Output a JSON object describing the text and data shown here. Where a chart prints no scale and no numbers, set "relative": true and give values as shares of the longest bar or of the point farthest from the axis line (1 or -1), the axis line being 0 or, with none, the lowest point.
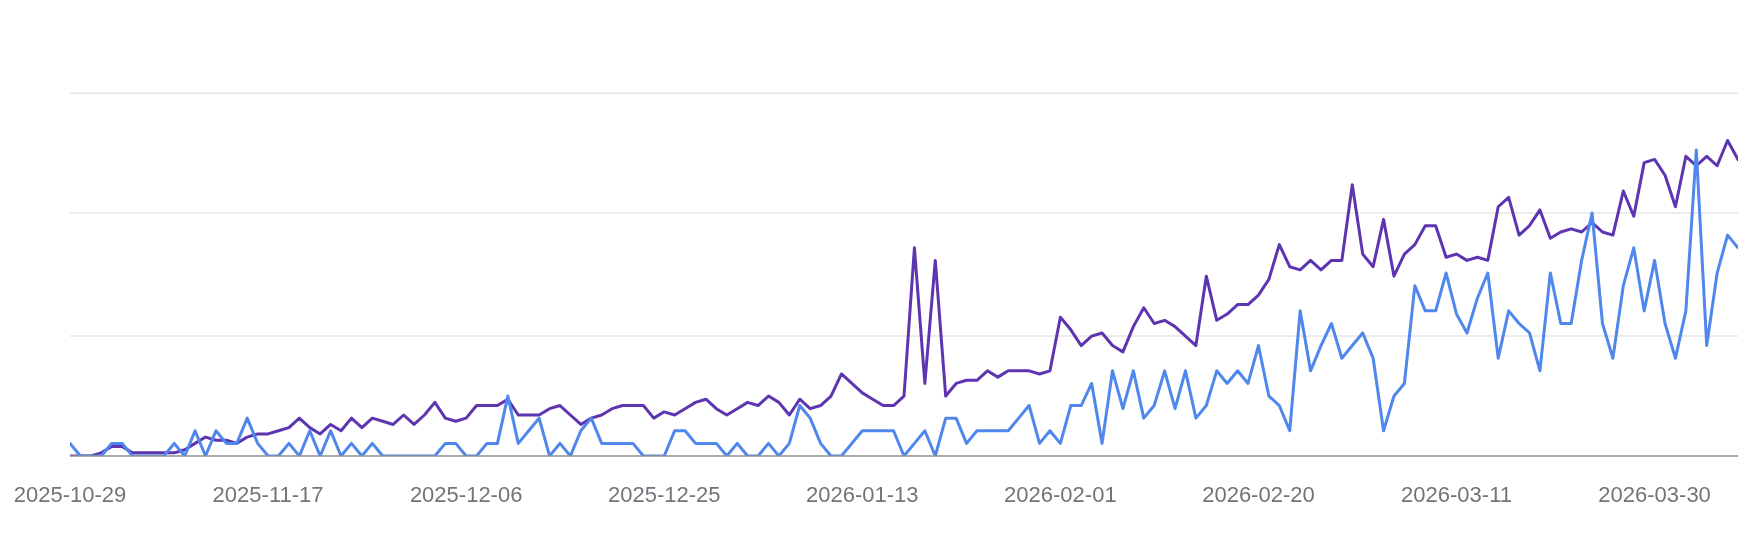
{
  "chart_data": {
    "type": "line",
    "relative": true,
    "marker": "none",
    "ref_lines": [
      {
        "axis": "y",
        "value": 0.38,
        "color": "#e6e6e6"
      },
      {
        "axis": "y",
        "value": 0.77,
        "color": "#e6e6e6"
      },
      {
        "axis": "y",
        "value": 1.15,
        "color": "#e6e6e6"
      }
    ],
    "x": [
      "2025-10-29",
      "2025-10-30",
      "2025-10-31",
      "2025-11-01",
      "2025-11-02",
      "2025-11-03",
      "2025-11-04",
      "2025-11-05",
      "2025-11-06",
      "2025-11-07",
      "2025-11-08",
      "2025-11-09",
      "2025-11-10",
      "2025-11-11",
      "2025-11-12",
      "2025-11-13",
      "2025-11-14",
      "2025-11-15",
      "2025-11-16",
      "2025-11-17",
      "2025-11-18",
      "2025-11-19",
      "2025-11-20",
      "2025-11-21",
      "2025-11-22",
      "2025-11-23",
      "2025-11-24",
      "2025-11-25",
      "2025-11-26",
      "2025-11-27",
      "2025-11-28",
      "2025-11-29",
      "2025-11-30",
      "2025-12-01",
      "2025-12-02",
      "2025-12-03",
      "2025-12-04",
      "2025-12-05",
      "2025-12-06",
      "2025-12-07",
      "2025-12-08",
      "2025-12-09",
      "2025-12-10",
      "2025-12-11",
      "2025-12-12",
      "2025-12-13",
      "2025-12-14",
      "2025-12-15",
      "2025-12-16",
      "2025-12-17",
      "2025-12-18",
      "2025-12-19",
      "2025-12-20",
      "2025-12-21",
      "2025-12-22",
      "2025-12-23",
      "2025-12-24",
      "2025-12-25",
      "2025-12-26",
      "2025-12-27",
      "2025-12-28",
      "2025-12-29",
      "2025-12-30",
      "2025-12-31",
      "2026-01-01",
      "2026-01-02",
      "2026-01-03",
      "2026-01-04",
      "2026-01-05",
      "2026-01-06",
      "2026-01-07",
      "2026-01-08",
      "2026-01-09",
      "2026-01-10",
      "2026-01-11",
      "2026-01-12",
      "2026-01-13",
      "2026-01-14",
      "2026-01-15",
      "2026-01-16",
      "2026-01-17",
      "2026-01-18",
      "2026-01-19",
      "2026-01-20",
      "2026-01-21",
      "2026-01-22",
      "2026-01-23",
      "2026-01-24",
      "2026-01-25",
      "2026-01-26",
      "2026-01-27",
      "2026-01-28",
      "2026-01-29",
      "2026-01-30",
      "2026-01-31",
      "2026-02-01",
      "2026-02-02",
      "2026-02-03",
      "2026-02-04",
      "2026-02-05",
      "2026-02-06",
      "2026-02-07",
      "2026-02-08",
      "2026-02-09",
      "2026-02-10",
      "2026-02-11",
      "2026-02-12",
      "2026-02-13",
      "2026-02-14",
      "2026-02-15",
      "2026-02-16",
      "2026-02-17",
      "2026-02-18",
      "2026-02-19",
      "2026-02-20",
      "2026-02-21",
      "2026-02-22",
      "2026-02-23",
      "2026-02-24",
      "2026-02-25",
      "2026-02-26",
      "2026-02-27",
      "2026-02-28",
      "2026-03-01",
      "2026-03-02",
      "2026-03-03",
      "2026-03-04",
      "2026-03-05",
      "2026-03-06",
      "2026-03-07",
      "2026-03-08",
      "2026-03-09",
      "2026-03-10",
      "2026-03-11",
      "2026-03-12",
      "2026-03-13",
      "2026-03-14",
      "2026-03-15",
      "2026-03-16",
      "2026-03-17",
      "2026-03-18",
      "2026-03-19",
      "2026-03-20",
      "2026-03-21",
      "2026-03-22",
      "2026-03-23",
      "2026-03-24",
      "2026-03-25",
      "2026-03-26",
      "2026-03-27",
      "2026-03-28",
      "2026-03-29",
      "2026-03-30",
      "2026-03-31",
      "2026-04-01",
      "2026-04-02",
      "2026-04-03",
      "2026-04-04",
      "2026-04-05",
      "2026-04-06",
      "2026-04-07"
    ],
    "xlim": [
      "2025-10-29",
      "2026-04-07"
    ],
    "xticks": [
      "2025-10-29",
      "2025-11-17",
      "2025-12-06",
      "2025-12-25",
      "2026-01-13",
      "2026-02-01",
      "2026-02-20",
      "2026-03-11",
      "2026-03-30"
    ],
    "series": [
      {
        "color": "#5e35b1",
        "values": [
          0,
          0,
          0,
          0.01,
          0.03,
          0.03,
          0.01,
          0.01,
          0.01,
          0.01,
          0.01,
          0.02,
          0.04,
          0.06,
          0.05,
          0.05,
          0.04,
          0.06,
          0.07,
          0.07,
          0.08,
          0.09,
          0.12,
          0.09,
          0.07,
          0.1,
          0.08,
          0.12,
          0.09,
          0.12,
          0.11,
          0.1,
          0.13,
          0.1,
          0.13,
          0.17,
          0.12,
          0.11,
          0.12,
          0.16,
          0.16,
          0.16,
          0.18,
          0.13,
          0.13,
          0.13,
          0.15,
          0.16,
          0.13,
          0.1,
          0.12,
          0.13,
          0.15,
          0.16,
          0.16,
          0.16,
          0.12,
          0.14,
          0.13,
          0.15,
          0.17,
          0.18,
          0.15,
          0.13,
          0.15,
          0.17,
          0.16,
          0.19,
          0.17,
          0.13,
          0.18,
          0.15,
          0.16,
          0.19,
          0.26,
          0.23,
          0.2,
          0.18,
          0.16,
          0.16,
          0.19,
          0.66,
          0.23,
          0.62,
          0.19,
          0.23,
          0.24,
          0.24,
          0.27,
          0.25,
          0.27,
          0.27,
          0.27,
          0.26,
          0.27,
          0.44,
          0.4,
          0.35,
          0.38,
          0.39,
          0.35,
          0.33,
          0.41,
          0.47,
          0.42,
          0.43,
          0.41,
          0.38,
          0.35,
          0.57,
          0.43,
          0.45,
          0.48,
          0.48,
          0.51,
          0.56,
          0.67,
          0.6,
          0.59,
          0.62,
          0.59,
          0.62,
          0.62,
          0.86,
          0.64,
          0.6,
          0.75,
          0.57,
          0.64,
          0.67,
          0.73,
          0.73,
          0.63,
          0.64,
          0.62,
          0.63,
          0.62,
          0.79,
          0.82,
          0.7,
          0.73,
          0.78,
          0.69,
          0.71,
          0.72,
          0.71,
          0.74,
          0.71,
          0.7,
          0.84,
          0.76,
          0.93,
          0.94,
          0.89,
          0.79,
          0.95,
          0.92,
          0.95,
          0.92,
          1,
          0.94
        ]
      },
      {
        "color": "#4f87ec",
        "values": [
          0.04,
          0,
          0,
          0,
          0.04,
          0.04,
          0,
          0,
          0,
          0,
          0.04,
          0,
          0.08,
          0,
          0.08,
          0.04,
          0.04,
          0.12,
          0.04,
          0,
          0,
          0.04,
          0,
          0.08,
          0,
          0.08,
          0,
          0.04,
          0,
          0.04,
          0,
          0,
          0,
          0,
          0,
          0,
          0.04,
          0.04,
          0,
          0,
          0.04,
          0.04,
          0.19,
          0.04,
          0.08,
          0.12,
          0,
          0.04,
          0,
          0.08,
          0.12,
          0.04,
          0.04,
          0.04,
          0.04,
          0,
          0,
          0,
          0.08,
          0.08,
          0.04,
          0.04,
          0.04,
          0,
          0.04,
          0,
          0,
          0.04,
          0,
          0.04,
          0.16,
          0.12,
          0.04,
          0,
          0,
          0.04,
          0.08,
          0.08,
          0.08,
          0.08,
          0,
          0.04,
          0.08,
          0,
          0.12,
          0.12,
          0.04,
          0.08,
          0.08,
          0.08,
          0.08,
          0.12,
          0.16,
          0.04,
          0.08,
          0.04,
          0.16,
          0.16,
          0.23,
          0.04,
          0.27,
          0.15,
          0.27,
          0.12,
          0.16,
          0.27,
          0.15,
          0.27,
          0.12,
          0.16,
          0.27,
          0.23,
          0.27,
          0.23,
          0.35,
          0.19,
          0.16,
          0.08,
          0.46,
          0.27,
          0.35,
          0.42,
          0.31,
          0.35,
          0.39,
          0.31,
          0.08,
          0.19,
          0.23,
          0.54,
          0.46,
          0.46,
          0.58,
          0.45,
          0.39,
          0.5,
          0.58,
          0.31,
          0.46,
          0.42,
          0.39,
          0.27,
          0.58,
          0.42,
          0.42,
          0.62,
          0.77,
          0.42,
          0.31,
          0.54,
          0.66,
          0.46,
          0.62,
          0.42,
          0.31,
          0.46,
          0.97,
          0.35,
          0.58,
          0.7,
          0.66
        ]
      }
    ]
  }
}
